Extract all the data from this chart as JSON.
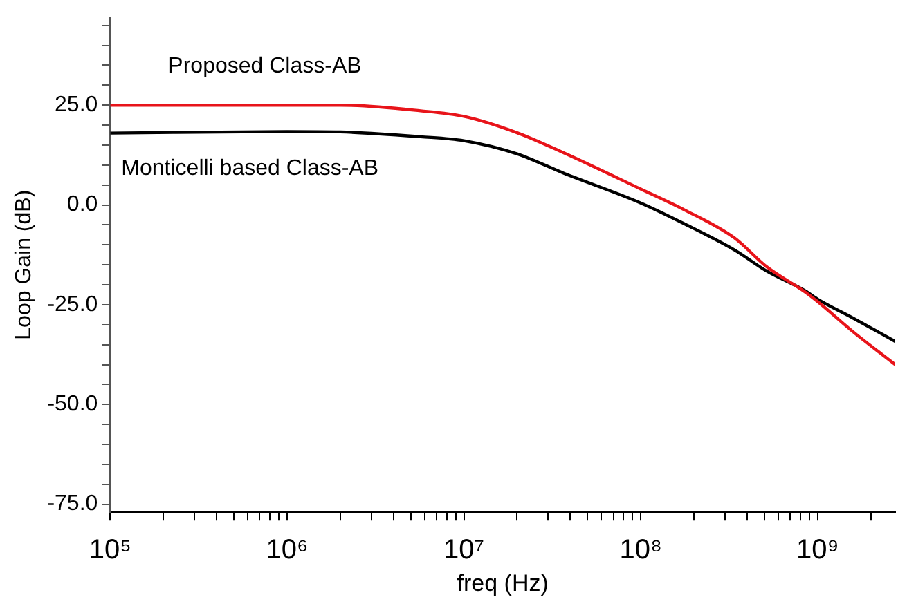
{
  "chart_data": {
    "type": "line",
    "xlabel": "freq (Hz)",
    "ylabel": "Loop Gain (dB)",
    "log": "x",
    "grid": false,
    "legend": false,
    "marker": "none",
    "line_style": "solid",
    "xlim": [
      100000,
      2750000000
    ],
    "ylim": [
      -77,
      47
    ],
    "xticks": [
      {
        "value": 100000,
        "label": "10⁵"
      },
      {
        "value": 200000,
        "label": null
      },
      {
        "value": 300000,
        "label": null
      },
      {
        "value": 400000,
        "label": null
      },
      {
        "value": 500000,
        "label": null
      },
      {
        "value": 600000,
        "label": null
      },
      {
        "value": 700000,
        "label": null
      },
      {
        "value": 800000,
        "label": null
      },
      {
        "value": 900000,
        "label": null
      },
      {
        "value": 1000000,
        "label": "10⁶"
      },
      {
        "value": 2000000,
        "label": null
      },
      {
        "value": 3000000,
        "label": null
      },
      {
        "value": 4000000,
        "label": null
      },
      {
        "value": 5000000,
        "label": null
      },
      {
        "value": 6000000,
        "label": null
      },
      {
        "value": 7000000,
        "label": null
      },
      {
        "value": 8000000,
        "label": null
      },
      {
        "value": 9000000,
        "label": null
      },
      {
        "value": 10000000,
        "label": "10⁷"
      },
      {
        "value": 20000000,
        "label": null
      },
      {
        "value": 30000000,
        "label": null
      },
      {
        "value": 40000000,
        "label": null
      },
      {
        "value": 50000000,
        "label": null
      },
      {
        "value": 60000000,
        "label": null
      },
      {
        "value": 70000000,
        "label": null
      },
      {
        "value": 80000000,
        "label": null
      },
      {
        "value": 90000000,
        "label": null
      },
      {
        "value": 100000000,
        "label": "10⁸"
      },
      {
        "value": 200000000,
        "label": null
      },
      {
        "value": 300000000,
        "label": null
      },
      {
        "value": 400000000,
        "label": null
      },
      {
        "value": 500000000,
        "label": null
      },
      {
        "value": 600000000,
        "label": null
      },
      {
        "value": 700000000,
        "label": null
      },
      {
        "value": 800000000,
        "label": null
      },
      {
        "value": 900000000,
        "label": null
      },
      {
        "value": 1000000000,
        "label": "10⁹"
      },
      {
        "value": 2000000000,
        "label": null
      }
    ],
    "yticks": [
      {
        "value": -75,
        "label": "-75.0"
      },
      {
        "value": -70,
        "label": null
      },
      {
        "value": -65,
        "label": null
      },
      {
        "value": -60,
        "label": null
      },
      {
        "value": -55,
        "label": null
      },
      {
        "value": -50,
        "label": "-50.0"
      },
      {
        "value": -45,
        "label": null
      },
      {
        "value": -40,
        "label": null
      },
      {
        "value": -35,
        "label": null
      },
      {
        "value": -30,
        "label": null
      },
      {
        "value": -25,
        "label": "-25.0"
      },
      {
        "value": -20,
        "label": null
      },
      {
        "value": -15,
        "label": null
      },
      {
        "value": -10,
        "label": null
      },
      {
        "value": -5,
        "label": null
      },
      {
        "value": 0,
        "label": "0.0"
      },
      {
        "value": 5,
        "label": null
      },
      {
        "value": 10,
        "label": null
      },
      {
        "value": 15,
        "label": null
      },
      {
        "value": 20,
        "label": null
      },
      {
        "value": 25,
        "label": "25.0"
      },
      {
        "value": 30,
        "label": null
      },
      {
        "value": 35,
        "label": null
      },
      {
        "value": 40,
        "label": null
      },
      {
        "value": 45,
        "label": null
      }
    ],
    "x": [
      100000,
      1000000,
      2000000,
      5690000,
      10000000,
      20000000,
      37000000,
      100000000,
      178000000,
      340000000,
      513000000,
      850000000,
      1000000000,
      1580000000,
      2750000000
    ],
    "series": [
      {
        "name": "Proposed Class-AB",
        "color": "#e8141a",
        "values": [
          25,
          25,
          25,
          23.6,
          22.2,
          18.1,
          13,
          4,
          -1.3,
          -8.3,
          -15.4,
          -21.8,
          -24.2,
          -31.7,
          -40
        ]
      },
      {
        "name": "Monticelli based Class-AB",
        "color": "#000000",
        "values": [
          18,
          18.4,
          18.3,
          17.1,
          16.1,
          12.8,
          7.9,
          0.5,
          -4.8,
          -11.3,
          -16.5,
          -21.5,
          -23.6,
          -28.3,
          -34.2
        ]
      }
    ]
  }
}
